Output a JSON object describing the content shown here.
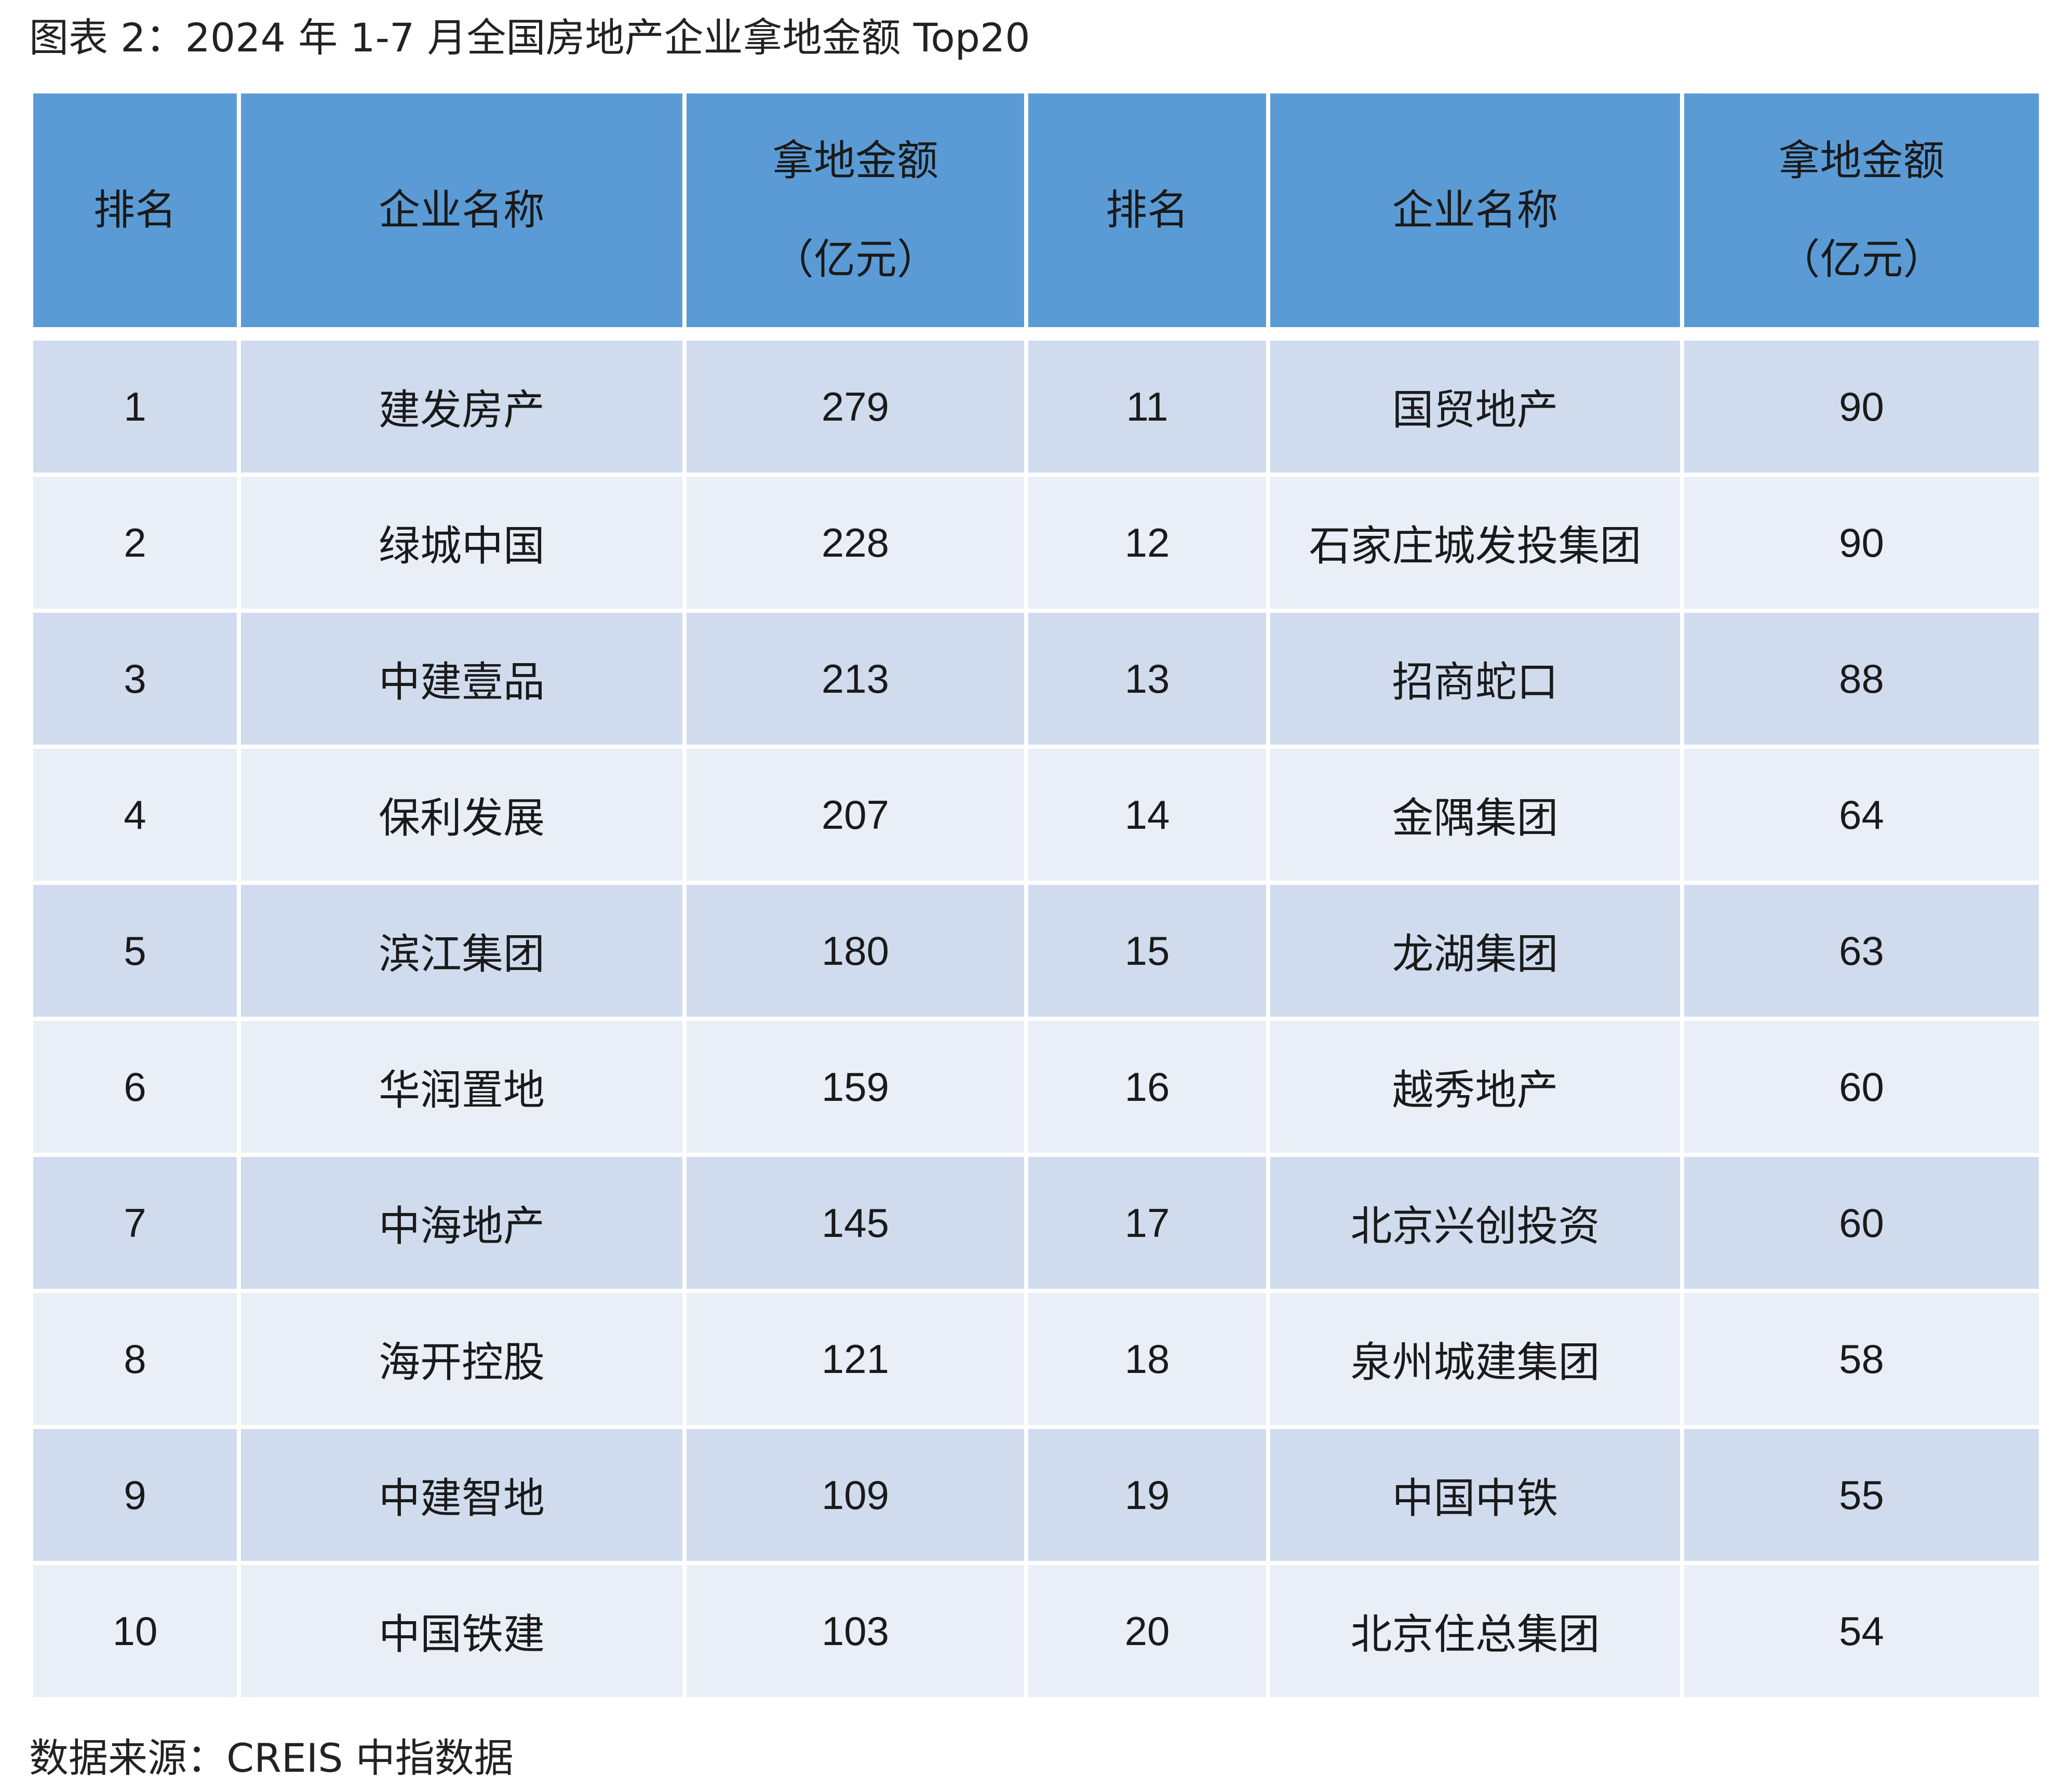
{
  "caption": "图表 2：2024 年 1-7 月全国房地产企业拿地金额 Top20",
  "header": {
    "rank": "排名",
    "company": "企业名称",
    "amount_line1": "拿地金额",
    "amount_line2": "（亿元）"
  },
  "rows": [
    {
      "rank_left": "1",
      "name_left": "建发房产",
      "amount_left": "279",
      "rank_right": "11",
      "name_right": "国贸地产",
      "amount_right": "90"
    },
    {
      "rank_left": "2",
      "name_left": "绿城中国",
      "amount_left": "228",
      "rank_right": "12",
      "name_right": "石家庄城发投集团",
      "amount_right": "90"
    },
    {
      "rank_left": "3",
      "name_left": "中建壹品",
      "amount_left": "213",
      "rank_right": "13",
      "name_right": "招商蛇口",
      "amount_right": "88"
    },
    {
      "rank_left": "4",
      "name_left": "保利发展",
      "amount_left": "207",
      "rank_right": "14",
      "name_right": "金隅集团",
      "amount_right": "64"
    },
    {
      "rank_left": "5",
      "name_left": "滨江集团",
      "amount_left": "180",
      "rank_right": "15",
      "name_right": "龙湖集团",
      "amount_right": "63"
    },
    {
      "rank_left": "6",
      "name_left": "华润置地",
      "amount_left": "159",
      "rank_right": "16",
      "name_right": "越秀地产",
      "amount_right": "60"
    },
    {
      "rank_left": "7",
      "name_left": "中海地产",
      "amount_left": "145",
      "rank_right": "17",
      "name_right": "北京兴创投资",
      "amount_right": "60"
    },
    {
      "rank_left": "8",
      "name_left": "海开控股",
      "amount_left": "121",
      "rank_right": "18",
      "name_right": "泉州城建集团",
      "amount_right": "58"
    },
    {
      "rank_left": "9",
      "name_left": "中建智地",
      "amount_left": "109",
      "rank_right": "19",
      "name_right": "中国中铁",
      "amount_right": "55"
    },
    {
      "rank_left": "10",
      "name_left": "中国铁建",
      "amount_left": "103",
      "rank_right": "20",
      "name_right": "北京住总集团",
      "amount_right": "54"
    }
  ],
  "source": "数据来源：CREIS 中指数据",
  "colors": {
    "header_bg": "#5b9bd5",
    "row_odd_bg": "#d0dcee",
    "row_even_bg": "#e9eef7"
  }
}
